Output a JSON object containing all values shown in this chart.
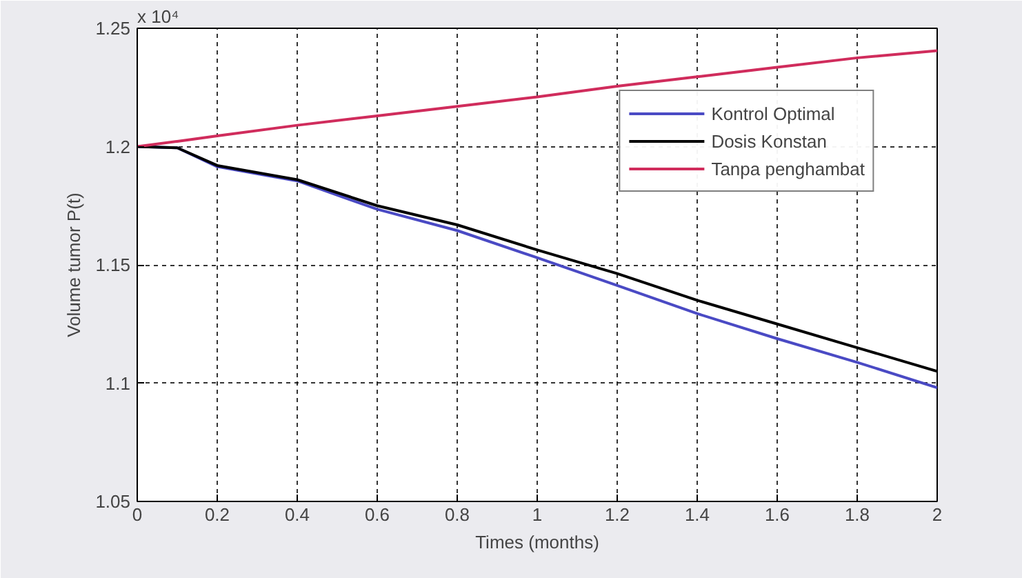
{
  "chart_data": {
    "type": "line",
    "xlabel": "Times (months)",
    "ylabel": "Volume tumor P(t)",
    "annotations": [
      "x 10⁴"
    ],
    "x": [
      0,
      0.1,
      0.2,
      0.4,
      0.6,
      0.8,
      1.0,
      1.2,
      1.4,
      1.6,
      1.8,
      2.0
    ],
    "series": [
      {
        "name": "Kontrol Optimal",
        "color": "#4a4ac4",
        "values": [
          1.2,
          1.1995,
          1.1915,
          1.1855,
          1.1735,
          1.1645,
          1.153,
          1.1413,
          1.1294,
          1.1188,
          1.1088,
          1.0981
        ]
      },
      {
        "name": "Dosis Konstan",
        "color": "#000000",
        "values": [
          1.2,
          1.1995,
          1.192,
          1.186,
          1.175,
          1.1669,
          1.1563,
          1.1463,
          1.135,
          1.125,
          1.115,
          1.105
        ]
      },
      {
        "name": "Tanpa penghambat",
        "color": "#d02c5c",
        "values": [
          1.2,
          1.2022,
          1.2045,
          1.209,
          1.213,
          1.217,
          1.221,
          1.2255,
          1.2295,
          1.2335,
          1.2375,
          1.2405
        ]
      }
    ],
    "xlim": [
      0,
      2
    ],
    "xticks": [
      0,
      0.2,
      0.4,
      0.6,
      0.8,
      1,
      1.2,
      1.4,
      1.6,
      1.8,
      2
    ],
    "ylim": [
      1.05,
      1.25
    ],
    "yticks": [
      1.05,
      1.1,
      1.15,
      1.2,
      1.25
    ],
    "grid": true,
    "legend": "top right",
    "line_style": "solid",
    "marker": "none"
  }
}
